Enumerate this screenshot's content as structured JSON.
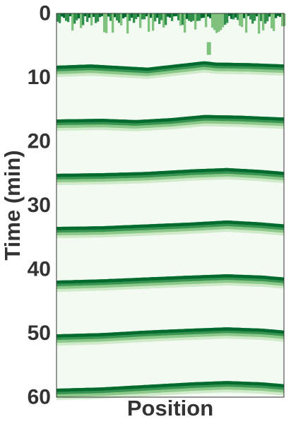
{
  "chart_data": {
    "type": "heatmap",
    "title": "",
    "xlabel": "Position",
    "ylabel": "Time (min)",
    "ylim": [
      0,
      60
    ],
    "y_inverted": true,
    "y_ticks": [
      0,
      10,
      20,
      30,
      40,
      50,
      60
    ],
    "y_tick_labels": [
      "0",
      "10",
      "20",
      "30",
      "40",
      "50",
      "60"
    ],
    "x_ticks_shown": false,
    "grid": false,
    "colormap": "Greens",
    "colors": {
      "background": "#f3faf1",
      "band_dark": "#006a2f",
      "band_mid": "#2f8f4b",
      "band_light": "#7fc27e",
      "band_pale": "#bfe3b7",
      "axis": "#333333",
      "text": "#333333"
    },
    "band_profiles_note_units": "x: fraction along position axis; t: time in min",
    "bands": [
      {
        "name": "",
        "profile": [
          {
            "x": 0.0,
            "t": 8.4
          },
          {
            "x": 0.15,
            "t": 8.2
          },
          {
            "x": 0.3,
            "t": 8.5
          },
          {
            "x": 0.4,
            "t": 8.7
          },
          {
            "x": 0.5,
            "t": 8.3
          },
          {
            "x": 0.65,
            "t": 7.7
          },
          {
            "x": 0.7,
            "t": 7.9
          },
          {
            "x": 0.85,
            "t": 8.0
          },
          {
            "x": 1.0,
            "t": 8.2
          }
        ]
      },
      {
        "name": "",
        "profile": [
          {
            "x": 0.0,
            "t": 16.8
          },
          {
            "x": 0.2,
            "t": 16.7
          },
          {
            "x": 0.35,
            "t": 16.9
          },
          {
            "x": 0.5,
            "t": 16.6
          },
          {
            "x": 0.65,
            "t": 16.1
          },
          {
            "x": 0.8,
            "t": 16.2
          },
          {
            "x": 1.0,
            "t": 16.5
          }
        ]
      },
      {
        "name": "",
        "profile": [
          {
            "x": 0.0,
            "t": 25.3
          },
          {
            "x": 0.2,
            "t": 25.2
          },
          {
            "x": 0.4,
            "t": 25.0
          },
          {
            "x": 0.6,
            "t": 24.6
          },
          {
            "x": 0.75,
            "t": 24.4
          },
          {
            "x": 0.9,
            "t": 24.7
          },
          {
            "x": 1.0,
            "t": 25.0
          }
        ]
      },
      {
        "name": "",
        "profile": [
          {
            "x": 0.0,
            "t": 33.6
          },
          {
            "x": 0.2,
            "t": 33.5
          },
          {
            "x": 0.4,
            "t": 33.2
          },
          {
            "x": 0.6,
            "t": 32.9
          },
          {
            "x": 0.75,
            "t": 32.6
          },
          {
            "x": 0.9,
            "t": 32.9
          },
          {
            "x": 1.0,
            "t": 33.2
          }
        ]
      },
      {
        "name": "",
        "profile": [
          {
            "x": 0.0,
            "t": 42.0
          },
          {
            "x": 0.2,
            "t": 41.8
          },
          {
            "x": 0.4,
            "t": 41.5
          },
          {
            "x": 0.6,
            "t": 41.2
          },
          {
            "x": 0.75,
            "t": 41.0
          },
          {
            "x": 0.9,
            "t": 41.2
          },
          {
            "x": 1.0,
            "t": 41.5
          }
        ]
      },
      {
        "name": "",
        "profile": [
          {
            "x": 0.0,
            "t": 50.4
          },
          {
            "x": 0.2,
            "t": 50.2
          },
          {
            "x": 0.4,
            "t": 49.8
          },
          {
            "x": 0.6,
            "t": 49.5
          },
          {
            "x": 0.75,
            "t": 49.3
          },
          {
            "x": 0.9,
            "t": 49.5
          },
          {
            "x": 1.0,
            "t": 49.8
          }
        ]
      },
      {
        "name": "",
        "profile": [
          {
            "x": 0.0,
            "t": 58.9
          },
          {
            "x": 0.2,
            "t": 58.7
          },
          {
            "x": 0.4,
            "t": 58.3
          },
          {
            "x": 0.6,
            "t": 57.9
          },
          {
            "x": 0.75,
            "t": 57.7
          },
          {
            "x": 0.9,
            "t": 57.9
          },
          {
            "x": 1.0,
            "t": 58.2
          }
        ]
      }
    ],
    "top_band": {
      "start_t": 0,
      "end_t_min": 0.4,
      "end_t_max": 3.2,
      "outlier": {
        "x": 0.67,
        "t": 5.6
      }
    }
  }
}
